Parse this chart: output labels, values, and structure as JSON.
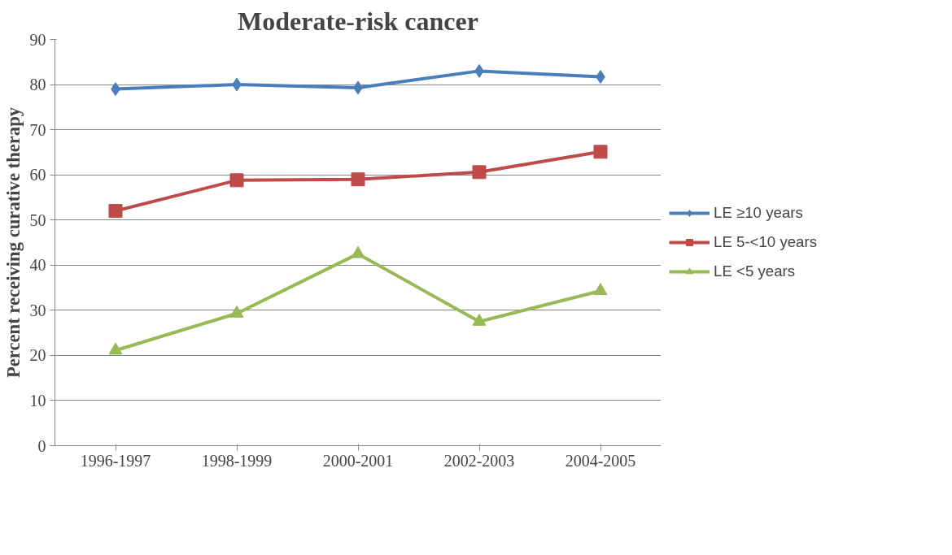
{
  "chart_data": {
    "type": "line",
    "title": "Moderate-risk cancer",
    "ylabel": "Percent receiving curative therapy",
    "categories": [
      "1996-1997",
      "1998-1999",
      "2000-2001",
      "2002-2003",
      "2004-2005"
    ],
    "series": [
      {
        "name": "LE ≥10 years",
        "color": "#4a7ebb",
        "marker": "diamond",
        "values": [
          79.0,
          80.0,
          79.3,
          83.0,
          81.7
        ]
      },
      {
        "name": "LE 5-<10 years",
        "color": "#be4b48",
        "marker": "square",
        "values": [
          52.0,
          58.8,
          59.0,
          60.6,
          65.1
        ]
      },
      {
        "name": "LE <5 years",
        "color": "#98b954",
        "marker": "triangle",
        "values": [
          21.1,
          29.3,
          42.5,
          27.5,
          34.3
        ]
      }
    ],
    "ylim": [
      0,
      90
    ],
    "yticks": [
      0,
      10,
      20,
      30,
      40,
      50,
      60,
      70,
      80,
      90
    ],
    "grid": "y",
    "legend": "right",
    "line_style": "solid"
  }
}
